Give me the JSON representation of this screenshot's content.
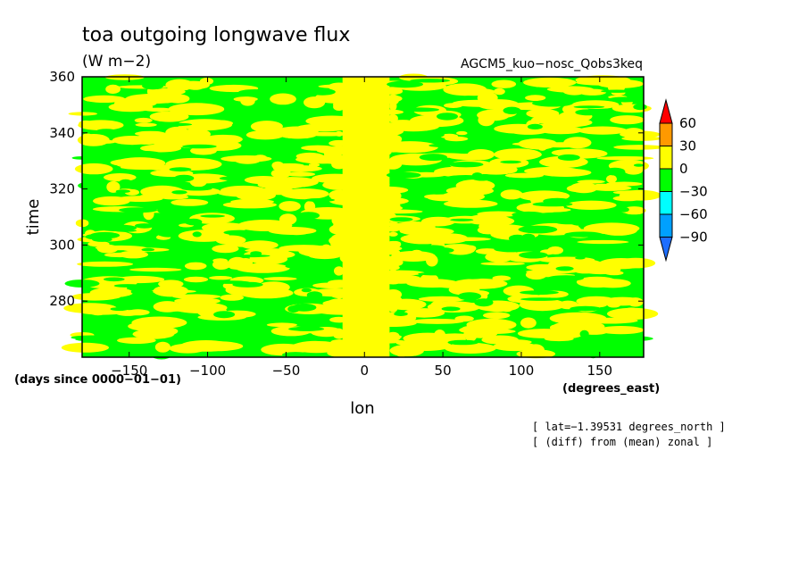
{
  "chart_data": {
    "type": "heatmap",
    "title": "toa outgoing longwave flux",
    "units": "(W m−2)",
    "model": "AGCM5_kuo−nosc_Qobs3keq",
    "xlabel": "lon",
    "ylabel": "time",
    "x_units": "(degrees_east)",
    "y_units": "(days since 0000−01−01)",
    "x_ticks": [
      -150,
      -100,
      -50,
      0,
      50,
      100,
      150
    ],
    "x_tick_labels": [
      "−150",
      "−100",
      "−50",
      "0",
      "50",
      "100",
      "150"
    ],
    "y_ticks": [
      280,
      300,
      320,
      340,
      360
    ],
    "y_tick_labels": [
      "280",
      "300",
      "320",
      "340",
      "360"
    ],
    "xlim": [
      -180,
      178
    ],
    "ylim": [
      260,
      360
    ],
    "note_lat": "[ lat=−1.39531 degrees_north ]",
    "note_diff": "[ (diff) from (mean) zonal ]",
    "colorbar": {
      "levels": [
        -90,
        -60,
        -30,
        0,
        30,
        60
      ],
      "level_labels": [
        "−90",
        "−60",
        "−30",
        "0",
        "30",
        "60"
      ],
      "colors": [
        "#1e6eff",
        "#00a0ff",
        "#00ffff",
        "#00ff00",
        "#ffff00",
        "#ff9900",
        "#ff0000"
      ]
    },
    "dominant_values": "yellow band (0 to 30) near lon 0; mixed green (−30 to 0) and yellow elsewhere"
  }
}
